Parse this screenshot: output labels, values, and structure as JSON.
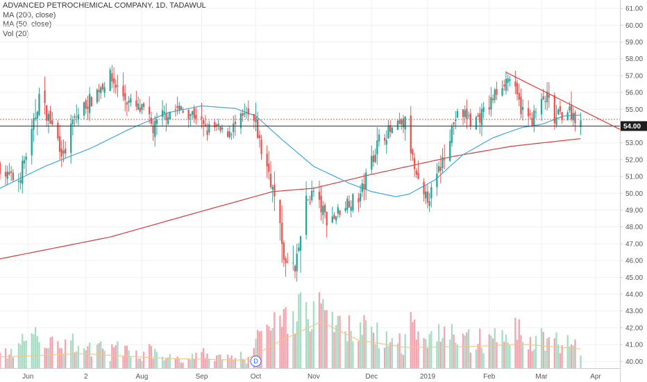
{
  "header": {
    "symbol_line": "ADVANCED PETROCHEMICAL COMPANY, 1D, TADAWUL",
    "ma200_label": "MA (200, close)",
    "ma50_label": "MA (50, close)",
    "vol_label": "Vol (20)"
  },
  "colors": {
    "up": "#26a69a",
    "down": "#ef5350",
    "up_volume": "#a8dcc4",
    "down_volume": "#f4a4ae",
    "ma200": "#d03b3b",
    "ma50": "#3fa6e0",
    "vol_ma": "#f5c58a",
    "trendline": "#e53935",
    "support_line": "#333333",
    "price_dotted": "#ef5350",
    "badge_bg": "#1e1e1e"
  },
  "marker": {
    "label": "D",
    "date": "2018-10-01"
  },
  "chart_data": {
    "type": "candlestick",
    "title": "ADVANCED PETROCHEMICAL COMPANY, 1D, TADAWUL",
    "x_range": [
      "2018-05-17",
      "2019-04-14"
    ],
    "y_range": [
      39.6,
      61.5
    ],
    "y_ticks": [
      "61.00",
      "60.00",
      "59.00",
      "58.00",
      "57.00",
      "56.00",
      "55.00",
      "54.00",
      "53.00",
      "52.00",
      "51.00",
      "50.00",
      "49.00",
      "48.00",
      "47.00",
      "46.00",
      "45.00",
      "44.00",
      "43.00",
      "42.00",
      "41.00",
      "40.00"
    ],
    "x_ticks": [
      {
        "label": "Jun",
        "date": "2018-06-01"
      },
      {
        "label": "2",
        "date": "2018-07-02"
      },
      {
        "label": "Aug",
        "date": "2018-08-01"
      },
      {
        "label": "Sep",
        "date": "2018-09-02"
      },
      {
        "label": "Oct",
        "date": "2018-10-01"
      },
      {
        "label": "Nov",
        "date": "2018-11-01"
      },
      {
        "label": "Dec",
        "date": "2018-12-02"
      },
      {
        "label": "2019",
        "date": "2019-01-01"
      },
      {
        "label": "Feb",
        "date": "2019-02-03"
      },
      {
        "label": "Mar",
        "date": "2019-03-03"
      },
      {
        "label": "Apr",
        "date": "2019-04-01"
      }
    ],
    "last_price_label": "54.00",
    "last_price": 54.0,
    "dotted_price": 54.4,
    "grid": true,
    "price_anchors": [
      [
        "2018-05-17",
        51.6
      ],
      [
        "2018-05-21",
        51.0
      ],
      [
        "2018-05-27",
        50.8
      ],
      [
        "2018-06-03",
        53.5
      ],
      [
        "2018-06-07",
        55.8
      ],
      [
        "2018-06-12",
        54.5
      ],
      [
        "2018-06-17",
        53.2
      ],
      [
        "2018-06-20",
        52.2
      ],
      [
        "2018-06-25",
        54.2
      ],
      [
        "2018-06-30",
        55.1
      ],
      [
        "2018-07-05",
        55.6
      ],
      [
        "2018-07-10",
        56.4
      ],
      [
        "2018-07-15",
        56.9
      ],
      [
        "2018-07-20",
        56.1
      ],
      [
        "2018-07-25",
        55.4
      ],
      [
        "2018-07-30",
        55.0
      ],
      [
        "2018-08-03",
        54.8
      ],
      [
        "2018-08-07",
        53.8
      ],
      [
        "2018-08-12",
        54.6
      ],
      [
        "2018-08-18",
        55.0
      ],
      [
        "2018-08-25",
        54.9
      ],
      [
        "2018-08-31",
        54.6
      ],
      [
        "2018-09-04",
        53.7
      ],
      [
        "2018-09-09",
        53.9
      ],
      [
        "2018-09-14",
        53.5
      ],
      [
        "2018-09-20",
        54.0
      ],
      [
        "2018-09-26",
        54.6
      ],
      [
        "2018-10-01",
        54.1
      ],
      [
        "2018-10-04",
        52.5
      ],
      [
        "2018-10-08",
        51.3
      ],
      [
        "2018-10-11",
        49.7
      ],
      [
        "2018-10-15",
        47.2
      ],
      [
        "2018-10-17",
        45.6
      ],
      [
        "2018-10-20",
        46.2
      ],
      [
        "2018-10-22",
        45.2
      ],
      [
        "2018-10-25",
        47.5
      ],
      [
        "2018-10-28",
        49.5
      ],
      [
        "2018-11-01",
        50.1
      ],
      [
        "2018-11-04",
        49.3
      ],
      [
        "2018-11-08",
        48.5
      ],
      [
        "2018-11-12",
        48.6
      ],
      [
        "2018-11-16",
        49.2
      ],
      [
        "2018-11-20",
        49.6
      ],
      [
        "2018-11-24",
        49.5
      ],
      [
        "2018-11-27",
        50.2
      ],
      [
        "2018-12-02",
        52.0
      ],
      [
        "2018-12-06",
        53.2
      ],
      [
        "2018-12-10",
        53.6
      ],
      [
        "2018-12-15",
        53.8
      ],
      [
        "2018-12-20",
        54.2
      ],
      [
        "2018-12-23",
        52.6
      ],
      [
        "2018-12-26",
        50.8
      ],
      [
        "2018-12-30",
        49.6
      ],
      [
        "2019-01-03",
        50.0
      ],
      [
        "2019-01-08",
        51.6
      ],
      [
        "2019-01-12",
        53.2
      ],
      [
        "2019-01-16",
        54.5
      ],
      [
        "2019-01-21",
        54.7
      ],
      [
        "2019-01-25",
        54.2
      ],
      [
        "2019-01-29",
        54.6
      ],
      [
        "2019-02-02",
        55.0
      ],
      [
        "2019-02-06",
        55.9
      ],
      [
        "2019-02-10",
        56.6
      ],
      [
        "2019-02-14",
        56.9
      ],
      [
        "2019-02-18",
        55.6
      ],
      [
        "2019-02-22",
        54.6
      ],
      [
        "2019-02-26",
        54.4
      ],
      [
        "2019-03-02",
        55.2
      ],
      [
        "2019-03-06",
        55.7
      ],
      [
        "2019-03-10",
        54.3
      ],
      [
        "2019-03-13",
        54.7
      ],
      [
        "2019-03-17",
        55.0
      ],
      [
        "2019-03-21",
        54.6
      ],
      [
        "2019-03-24",
        54.0
      ]
    ],
    "ma50_anchors": [
      [
        "2018-05-17",
        50.3
      ],
      [
        "2018-06-10",
        51.6
      ],
      [
        "2018-07-05",
        52.7
      ],
      [
        "2018-07-25",
        53.8
      ],
      [
        "2018-08-15",
        54.8
      ],
      [
        "2018-09-02",
        55.2
      ],
      [
        "2018-09-20",
        55.05
      ],
      [
        "2018-10-01",
        54.6
      ],
      [
        "2018-10-15",
        53.2
      ],
      [
        "2018-11-01",
        51.6
      ],
      [
        "2018-11-20",
        50.6
      ],
      [
        "2018-12-02",
        50.1
      ],
      [
        "2018-12-15",
        49.8
      ],
      [
        "2018-12-22",
        49.95
      ],
      [
        "2019-01-05",
        50.8
      ],
      [
        "2019-01-20",
        52.3
      ],
      [
        "2019-02-05",
        53.3
      ],
      [
        "2019-02-20",
        53.9
      ],
      [
        "2019-03-03",
        54.1
      ],
      [
        "2019-03-15",
        54.6
      ],
      [
        "2019-03-24",
        54.65
      ]
    ],
    "ma200_anchors": [
      [
        "2018-05-17",
        46.1
      ],
      [
        "2018-07-15",
        47.4
      ],
      [
        "2018-09-01",
        48.9
      ],
      [
        "2018-10-10",
        50.1
      ],
      [
        "2018-11-01",
        50.3
      ],
      [
        "2018-12-01",
        51.1
      ],
      [
        "2019-01-15",
        52.2
      ],
      [
        "2019-02-15",
        52.8
      ],
      [
        "2019-03-24",
        53.25
      ]
    ],
    "trendline": [
      [
        "2019-02-12",
        57.2
      ],
      [
        "2019-04-14",
        53.8
      ]
    ],
    "volume_ma_anchors": [
      [
        "2018-05-17",
        0.14
      ],
      [
        "2018-07-01",
        0.18
      ],
      [
        "2018-08-15",
        0.12
      ],
      [
        "2018-09-25",
        0.1
      ],
      [
        "2018-10-15",
        0.35
      ],
      [
        "2018-11-05",
        0.58
      ],
      [
        "2018-11-25",
        0.35
      ],
      [
        "2018-12-20",
        0.26
      ],
      [
        "2019-01-25",
        0.27
      ],
      [
        "2019-02-20",
        0.3
      ],
      [
        "2019-03-24",
        0.24
      ]
    ],
    "volume_scale_note": "relative"
  }
}
